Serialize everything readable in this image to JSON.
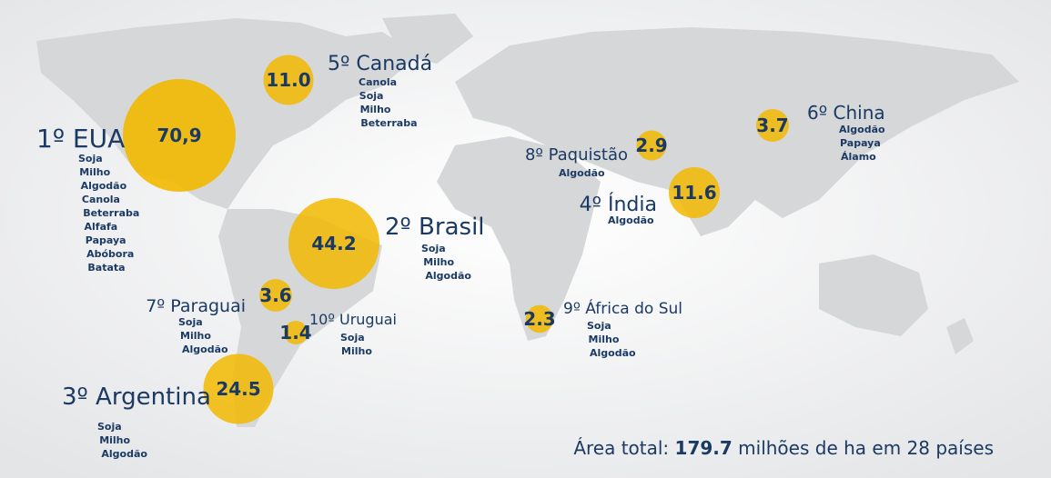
{
  "countries": [
    {
      "rank_label": "1º EUA",
      "value": 70.9,
      "value_label": "70,9",
      "crops": [
        "Soja",
        "Milho",
        "Algodão",
        "Canola",
        "Beterraba",
        "Alfafa",
        "Papaya",
        "Abóbora",
        "Batata"
      ]
    },
    {
      "rank_label": "5º Canadá",
      "value": 11.0,
      "value_label": "11.0",
      "crops": [
        "Canola",
        "Soja",
        "Milho",
        "Beterraba"
      ]
    },
    {
      "rank_label": "2º Brasil",
      "value": 44.2,
      "value_label": "44.2",
      "crops": [
        "Soja",
        "Milho",
        "Algodão"
      ]
    },
    {
      "rank_label": "3º Argentina",
      "value": 24.5,
      "value_label": "24.5",
      "crops": [
        "Soja",
        "Milho",
        "Algodão"
      ]
    },
    {
      "rank_label": "7º Paraguai",
      "value": 3.6,
      "value_label": "3.6",
      "crops": [
        "Soja",
        "Milho",
        "Algodão"
      ]
    },
    {
      "rank_label": "10º Uruguai",
      "value": 1.4,
      "value_label": "1.4",
      "crops": [
        "Soja",
        "Milho"
      ]
    },
    {
      "rank_label": "4º Índia",
      "value": 11.6,
      "value_label": "11.6",
      "crops": [
        "Algodão"
      ]
    },
    {
      "rank_label": "8º Paquistão",
      "value": 2.9,
      "value_label": "2.9",
      "crops": [
        "Algodão"
      ]
    },
    {
      "rank_label": "6º China",
      "value": 3.7,
      "value_label": "3.7",
      "crops": [
        "Algodão",
        "Papaya",
        "Álamo"
      ]
    },
    {
      "rank_label": "9º África do Sul",
      "value": 2.3,
      "value_label": "2.3",
      "crops": [
        "Soja",
        "Milho",
        "Algodão"
      ]
    }
  ],
  "total": {
    "prefix": "Área total: ",
    "value": "179.7",
    "suffix": " milhões de ha em 28 países"
  }
}
